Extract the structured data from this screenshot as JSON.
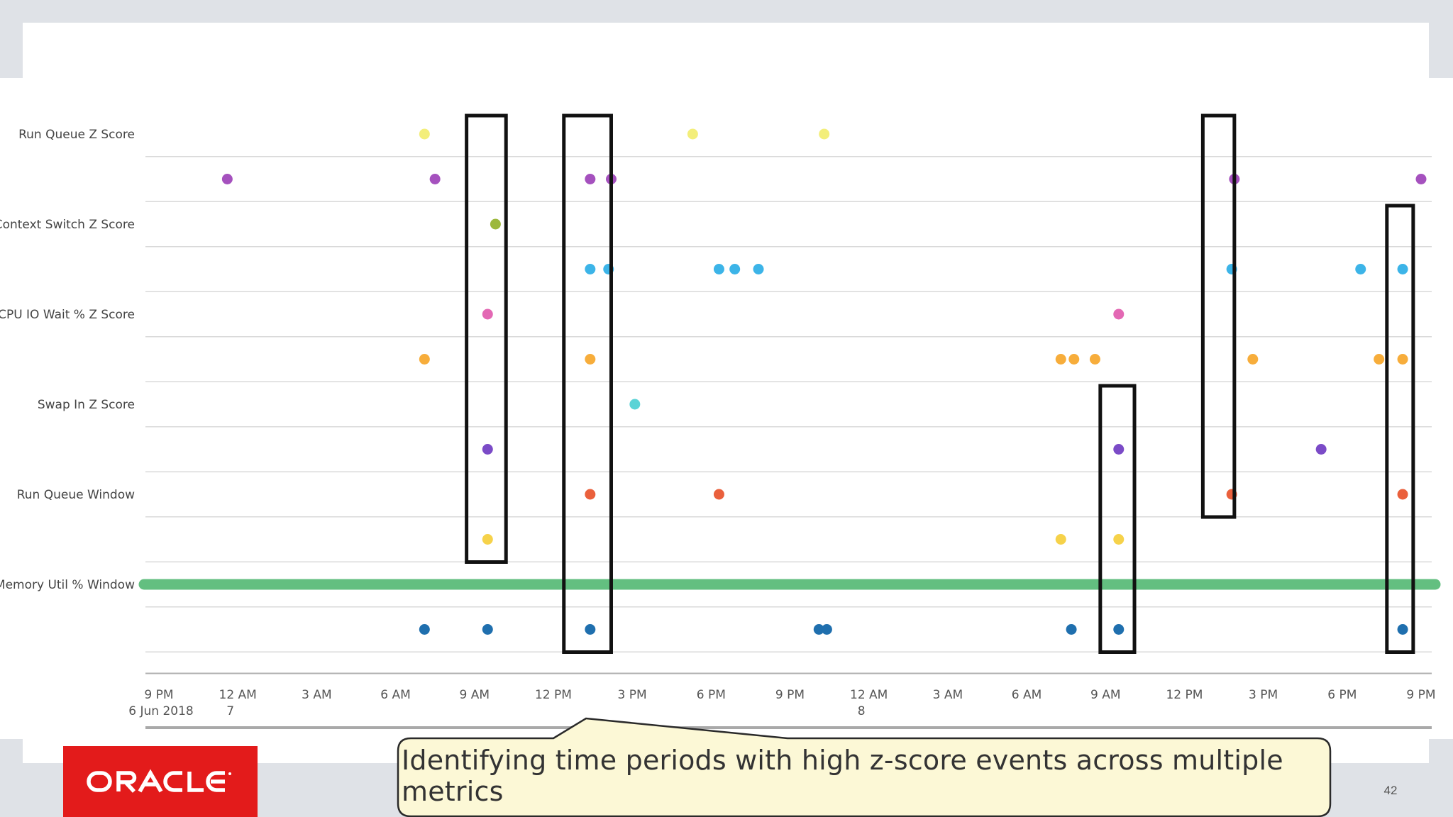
{
  "slide": {
    "callout_text": "Identifying time periods with high z-score events across multiple metrics",
    "page_number": "42",
    "logo_text": "ORACLE"
  },
  "colors": {
    "logo_red": "#e31b1b",
    "callout_fill": "#fcf8d6",
    "highlight_box": "#111111",
    "gridline": "#d9d9d9",
    "axis": "#b0b0b0"
  },
  "chart_data": {
    "type": "scatter",
    "title": "",
    "xlabel": "",
    "ylabel": "",
    "x_unit": "hours since 9 PM 6 Jun 2018",
    "xlim": [
      0,
      48
    ],
    "x_ticks": [
      {
        "hour": 0,
        "label": "9 PM",
        "sublabel": "6 Jun 2018"
      },
      {
        "hour": 3,
        "label": "12 AM",
        "sublabel": "7"
      },
      {
        "hour": 6,
        "label": "3 AM",
        "sublabel": ""
      },
      {
        "hour": 9,
        "label": "6 AM",
        "sublabel": ""
      },
      {
        "hour": 12,
        "label": "9 AM",
        "sublabel": ""
      },
      {
        "hour": 15,
        "label": "12 PM",
        "sublabel": ""
      },
      {
        "hour": 18,
        "label": "3 PM",
        "sublabel": ""
      },
      {
        "hour": 21,
        "label": "6 PM",
        "sublabel": ""
      },
      {
        "hour": 24,
        "label": "9 PM",
        "sublabel": ""
      },
      {
        "hour": 27,
        "label": "12 AM",
        "sublabel": "8"
      },
      {
        "hour": 30,
        "label": "3 AM",
        "sublabel": ""
      },
      {
        "hour": 33,
        "label": "6 AM",
        "sublabel": ""
      },
      {
        "hour": 36,
        "label": "9 AM",
        "sublabel": ""
      },
      {
        "hour": 39,
        "label": "12 PM",
        "sublabel": ""
      },
      {
        "hour": 42,
        "label": "3 PM",
        "sublabel": ""
      },
      {
        "hour": 45,
        "label": "6 PM",
        "sublabel": ""
      },
      {
        "hour": 48,
        "label": "9 PM",
        "sublabel": ""
      }
    ],
    "rows": [
      {
        "label": "Run Queue Z Score",
        "color": "#f3ee7a",
        "events": [
          10.1,
          20.3,
          25.3
        ]
      },
      {
        "label": "",
        "color": "#a551be",
        "events": [
          2.6,
          10.5,
          16.4,
          17.2,
          40.9,
          48.0
        ]
      },
      {
        "label": "Context Switch Z Score",
        "color": "#9cb83c",
        "events": [
          12.8
        ]
      },
      {
        "label": "",
        "color": "#3cb4e8",
        "events": [
          16.4,
          17.1,
          21.3,
          21.9,
          22.8,
          40.8,
          45.7,
          47.3
        ]
      },
      {
        "label": "CPU IO Wait % Z Score",
        "color": "#e368b4",
        "events": [
          12.5,
          36.5
        ]
      },
      {
        "label": "",
        "color": "#f7ad3b",
        "events": [
          10.1,
          16.4,
          34.3,
          34.8,
          35.6,
          41.6,
          46.4,
          47.3
        ]
      },
      {
        "label": "Swap In Z Score",
        "color": "#5ad3d6",
        "events": [
          18.1
        ]
      },
      {
        "label": "",
        "color": "#7b4bc7",
        "events": [
          12.5,
          36.5,
          44.2
        ]
      },
      {
        "label": "Run Queue Window",
        "color": "#ea603c",
        "events": [
          16.4,
          21.3,
          40.8,
          47.3
        ]
      },
      {
        "label": "",
        "color": "#f6d24a",
        "events": [
          12.5,
          34.3,
          36.5
        ]
      },
      {
        "label": "Memory Util % Window",
        "color": "#63bf80",
        "span": [
          0,
          48
        ]
      },
      {
        "label": "",
        "color": "#1f6fae",
        "events": [
          10.1,
          12.5,
          16.4,
          25.1,
          25.4,
          34.7,
          36.5,
          47.3
        ]
      }
    ],
    "highlight_windows": [
      {
        "start": 11.7,
        "end": 13.2,
        "first_row": 0,
        "last_row": 9
      },
      {
        "start": 15.4,
        "end": 17.2,
        "first_row": 0,
        "last_row": 11
      },
      {
        "start": 35.8,
        "end": 37.1,
        "first_row": 6,
        "last_row": 11
      },
      {
        "start": 39.7,
        "end": 40.9,
        "first_row": 0,
        "last_row": 8
      },
      {
        "start": 46.7,
        "end": 47.7,
        "first_row": 2,
        "last_row": 11
      }
    ],
    "grid": true,
    "legend": "none"
  }
}
